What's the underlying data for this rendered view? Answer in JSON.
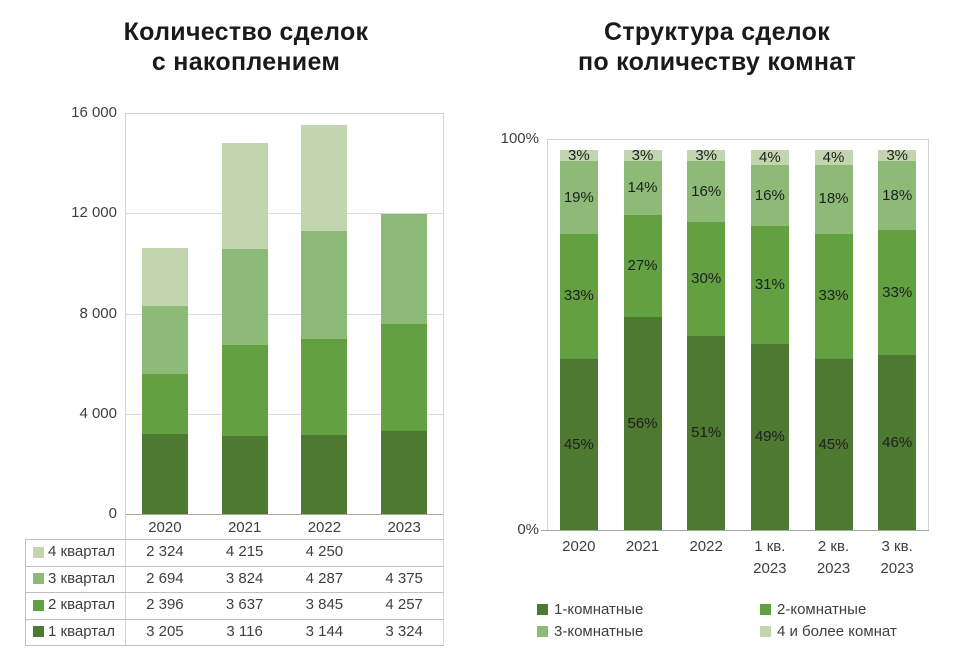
{
  "page": {
    "background": "#ffffff"
  },
  "chart_data": [
    {
      "type": "bar",
      "stacked": true,
      "title_line1": "Количество сделок",
      "title_line2": "с накоплением",
      "categories": [
        "2020",
        "2021",
        "2022",
        "2023"
      ],
      "series": [
        {
          "name": "1 квартал",
          "color": "#4e7931",
          "values": [
            3205,
            3116,
            3144,
            3324
          ],
          "display": [
            "3 205",
            "3 116",
            "3 144",
            "3 324"
          ]
        },
        {
          "name": "2 квартал",
          "color": "#62a041",
          "values": [
            2396,
            3637,
            3845,
            4257
          ],
          "display": [
            "2 396",
            "3 637",
            "3 845",
            "4 257"
          ]
        },
        {
          "name": "3 квартал",
          "color": "#8eba77",
          "values": [
            2694,
            3824,
            4287,
            4375
          ],
          "display": [
            "2 694",
            "3 824",
            "4 287",
            "4 375"
          ]
        },
        {
          "name": "4 квартал",
          "color": "#c2d5ae",
          "values": [
            2324,
            4215,
            4250,
            null
          ],
          "display": [
            "2 324",
            "4 215",
            "4 250",
            ""
          ]
        }
      ],
      "y_axis": {
        "min": 0,
        "max": 16000,
        "tick_step": 4000,
        "tick_labels": [
          "16 000",
          "12 000",
          "8 000",
          "4 000",
          "0"
        ]
      },
      "grid": true,
      "legend_position": "data-table-left",
      "data_table_row_order_top_to_bottom": [
        "4 квартал",
        "3 квартал",
        "2 квартал",
        "1 квартал"
      ]
    },
    {
      "type": "bar",
      "stacked": true,
      "unit": "percent",
      "title_line1": "Структура сделок",
      "title_line2": "по количеству комнат",
      "categories": [
        [
          "2020"
        ],
        [
          "2021"
        ],
        [
          "2022"
        ],
        [
          "1 кв.",
          "2023"
        ],
        [
          "2 кв.",
          "2023"
        ],
        [
          "3 кв.",
          "2023"
        ]
      ],
      "series": [
        {
          "name": "1-комнатные",
          "color": "#4e7931",
          "values": [
            45,
            56,
            51,
            49,
            45,
            46
          ]
        },
        {
          "name": "2-комнатные",
          "color": "#62a041",
          "values": [
            33,
            27,
            30,
            31,
            33,
            33
          ]
        },
        {
          "name": "3-комнатные",
          "color": "#8eba77",
          "values": [
            19,
            14,
            16,
            16,
            18,
            18
          ]
        },
        {
          "name": "4 и более комнат",
          "color": "#c2d5ae",
          "values": [
            3,
            3,
            3,
            4,
            4,
            3
          ]
        }
      ],
      "label_suffix": "%",
      "y_axis": {
        "min": 0,
        "max": 100,
        "top_label": "100%",
        "bottom_label": "0%"
      },
      "grid": false,
      "legend_position": "bottom",
      "legend_order": [
        "1-комнатные",
        "2-комнатные",
        "3-комнатные",
        "4 и более комнат"
      ]
    }
  ]
}
